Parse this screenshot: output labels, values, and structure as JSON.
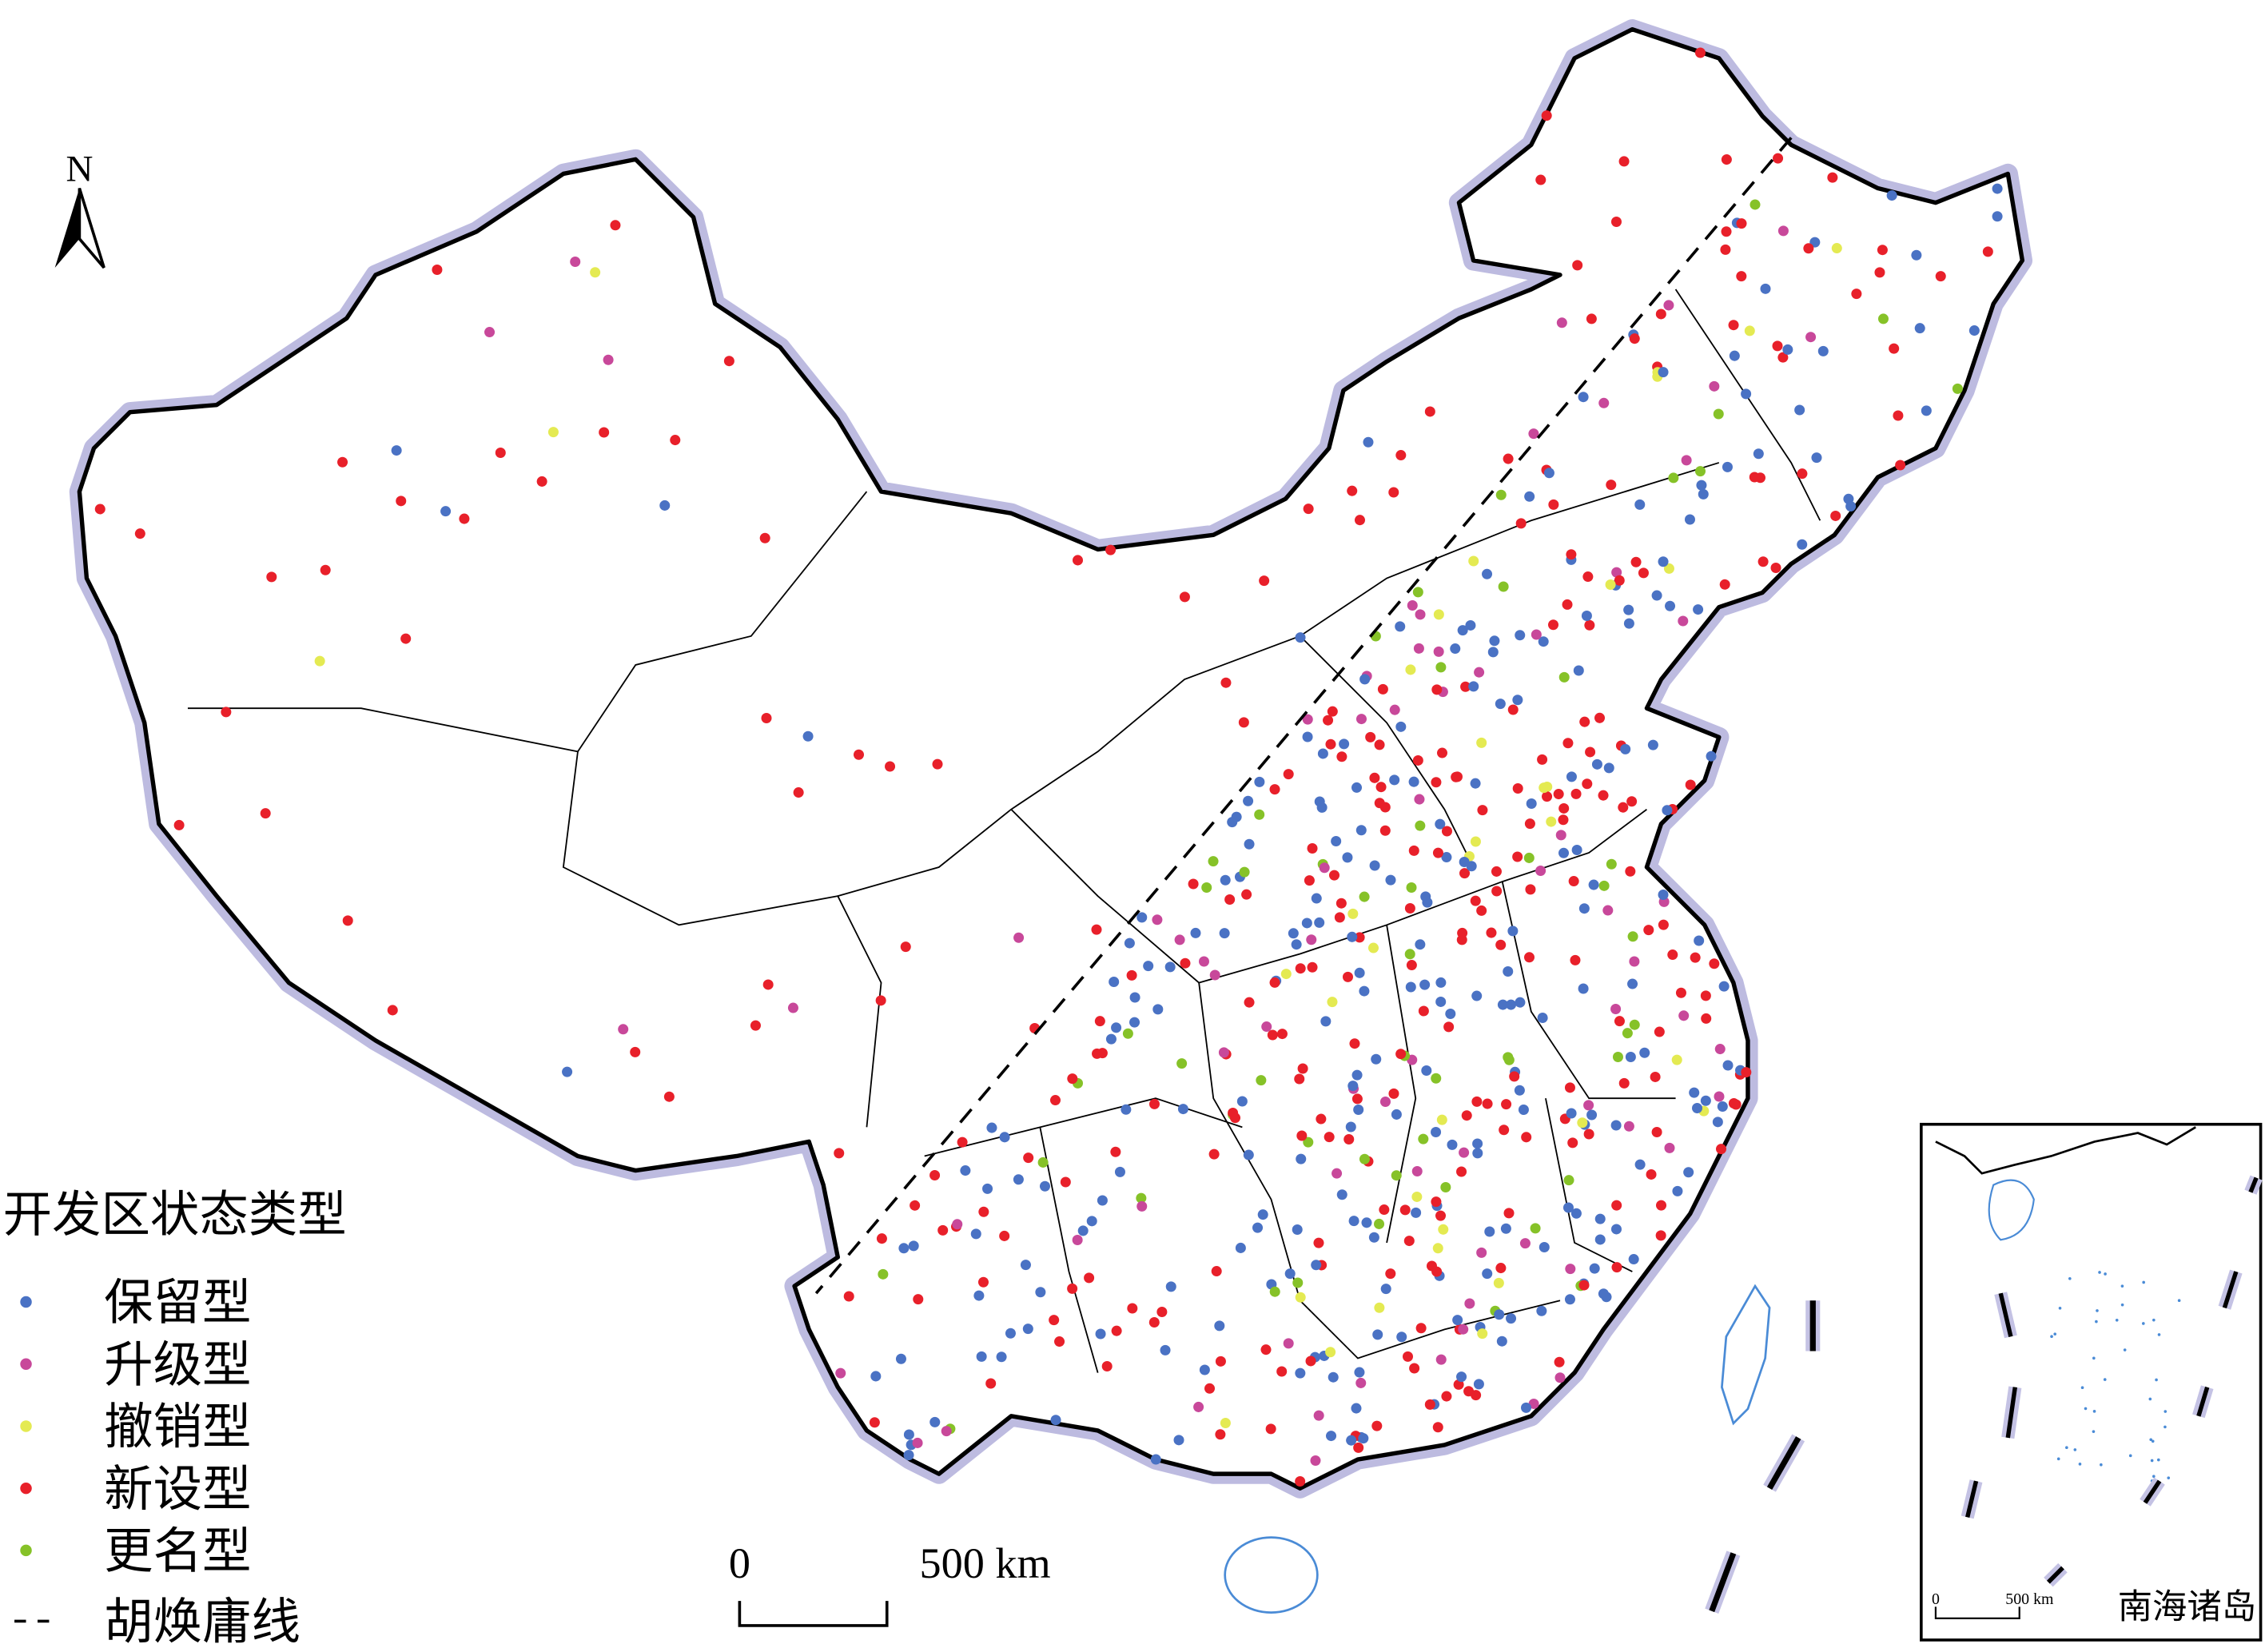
{
  "north_arrow": "N",
  "legend": {
    "title": "开发区状态类型",
    "items": [
      {
        "label": "保留型",
        "color": "#4a72c4"
      },
      {
        "label": "升级型",
        "color": "#c8489a"
      },
      {
        "label": "撤销型",
        "color": "#e4ea52"
      },
      {
        "label": "新设型",
        "color": "#e8202a"
      },
      {
        "label": "更名型",
        "color": "#86c228"
      }
    ],
    "line": {
      "label": "胡焕庸线"
    }
  },
  "scale_bar": {
    "start": "0",
    "end": "500 km"
  },
  "inset": {
    "title": "南海诸岛",
    "scale_start": "0",
    "scale_end": "500 km"
  }
}
